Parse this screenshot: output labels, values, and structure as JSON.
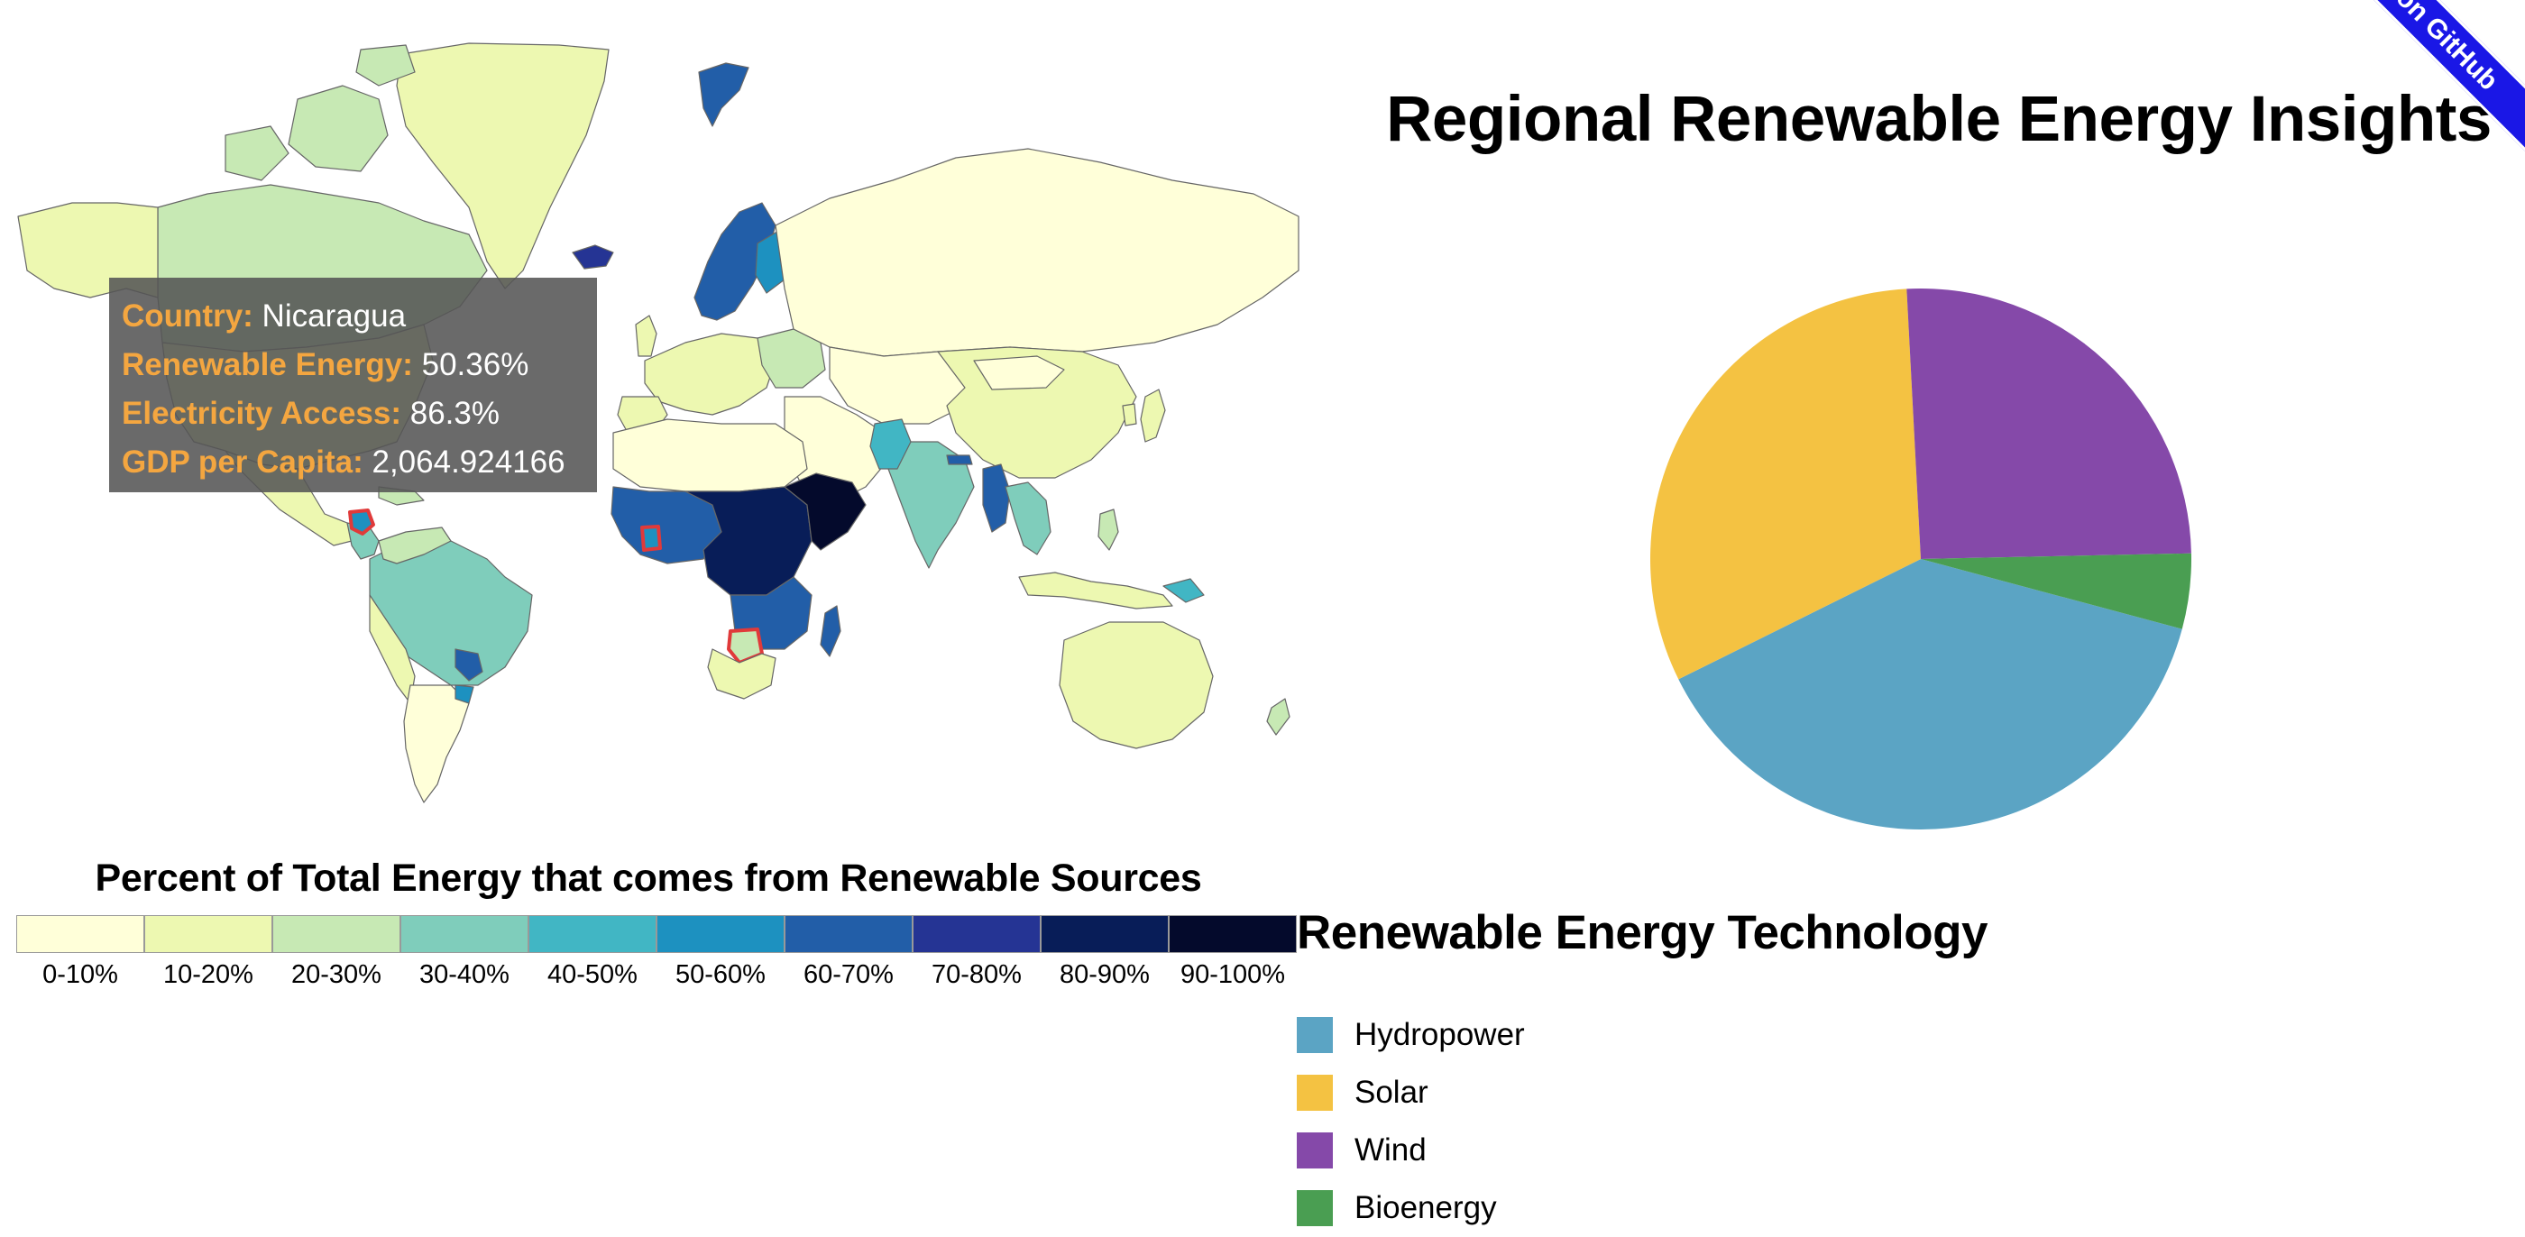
{
  "tooltip": {
    "country_key": "Country:",
    "country_val": "Nicaragua",
    "renew_key": "Renewable Energy:",
    "renew_val": "50.36%",
    "elec_key": "Electricity Access:",
    "elec_val": "86.3%",
    "gdp_key": "GDP per Capita:",
    "gdp_val": "2,064.924166"
  },
  "legend": {
    "title": "Percent of Total Energy that comes from Renewable Sources",
    "bins": [
      {
        "label": "0-10%",
        "color": "#ffffd9"
      },
      {
        "label": "10-20%",
        "color": "#edf8b1"
      },
      {
        "label": "20-30%",
        "color": "#c7e9b4"
      },
      {
        "label": "30-40%",
        "color": "#7fcdbb"
      },
      {
        "label": "40-50%",
        "color": "#41b6c4"
      },
      {
        "label": "50-60%",
        "color": "#1d91c0"
      },
      {
        "label": "60-70%",
        "color": "#225ea8"
      },
      {
        "label": "70-80%",
        "color": "#253494"
      },
      {
        "label": "80-90%",
        "color": "#081d58"
      },
      {
        "label": "90-100%",
        "color": "#040a2c"
      }
    ]
  },
  "ribbon_text": "on GitHub",
  "chart_data": {
    "type": "pie",
    "title": "Regional Renewable Energy Insights",
    "legend_title": "Renewable Energy Technology",
    "slices": [
      {
        "name": "Hydropower",
        "value": 38.5,
        "color": "#5ba4c4"
      },
      {
        "name": "Solar",
        "value": 31.5,
        "color": "#f4c242"
      },
      {
        "name": "Wind",
        "value": 25.5,
        "color": "#8549a9"
      },
      {
        "name": "Bioenergy",
        "value": 4.5,
        "color": "#4a9e52"
      }
    ]
  }
}
